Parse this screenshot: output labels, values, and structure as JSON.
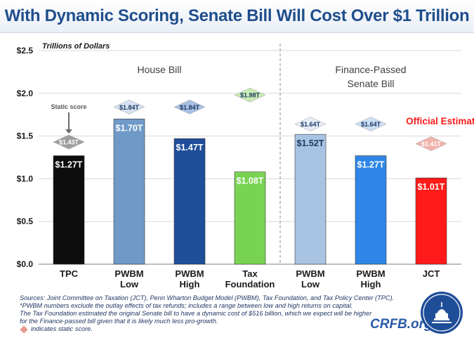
{
  "title": "With Dynamic Scoring, Senate Bill Will Cost Over $1 Trillion",
  "chart_data": {
    "type": "bar",
    "ylabel": "Trillions of Dollars",
    "ylim": [
      0,
      2.5
    ],
    "yticks": [
      0,
      0.5,
      1.0,
      1.5,
      2.0,
      2.5
    ],
    "ytick_labels": [
      "$0.0",
      "$0.5",
      "$1.0",
      "$1.5",
      "$2.0",
      "$2.5"
    ],
    "grid": true,
    "groups": [
      {
        "label_lines": [
          "House Bill"
        ],
        "categories": [
          0,
          1,
          2,
          3
        ]
      },
      {
        "label_lines": [
          "Finance-Passed",
          "Senate Bill"
        ],
        "categories": [
          4,
          5,
          6
        ]
      }
    ],
    "categories": [
      [
        "TPC"
      ],
      [
        "PWBM",
        "Low"
      ],
      [
        "PWBM",
        "High"
      ],
      [
        "Tax",
        "Foundation"
      ],
      [
        "PWBM",
        "Low"
      ],
      [
        "PWBM",
        "High"
      ],
      [
        "JCT"
      ]
    ],
    "values": [
      1.27,
      1.7,
      1.47,
      1.08,
      1.52,
      1.27,
      1.01
    ],
    "value_labels": [
      "$1.27T",
      "$1.70T",
      "$1.47T",
      "$1.08T",
      "$1.52T",
      "$1.27T",
      "$1.01T"
    ],
    "bar_colors": [
      "#0d0d0d",
      "#6f9ac7",
      "#1f4e99",
      "#79d352",
      "#a9c4e2",
      "#2f86e6",
      "#ff1a1a"
    ],
    "value_label_colors": [
      "#ffffff",
      "#ffffff",
      "#ffffff",
      "#ffffff",
      "#1f3864",
      "#ffffff",
      "#ffffff"
    ],
    "static_scores": [
      1.43,
      1.84,
      1.84,
      1.98,
      1.64,
      1.64,
      1.41
    ],
    "static_labels": [
      "$1.43T",
      "$1.84T",
      "$1.84T",
      "$1.98T",
      "$1.64T",
      "$1.64T",
      "$1.41T"
    ],
    "diamond_colors": [
      "#9e9e9e",
      "#d4e2f1",
      "#a9bfe3",
      "#c9ebb5",
      "#e6edf7",
      "#cddff6",
      "#f2b1aa"
    ],
    "diamond_text_colors": [
      "#ffffff",
      "#1f3864",
      "#1f3864",
      "#1f3864",
      "#1f3864",
      "#1f3864",
      "#ffffff"
    ],
    "annotations": {
      "static_score": "Static score",
      "official_estimate": "Official Estimate"
    }
  },
  "footer": {
    "lines": [
      "Sources: Joint Committee on Taxation (JCT), Penn Wharton Budget Model (PWBM), Tax Foundation, and Tax Policy Center (TPC).",
      "*PWBM numbers exclude the outlay effects of tax refunds; includes a range between low and high returns on capital.",
      "The Tax Foundation estimated the original Senate bill to have a dynamic cost of $516 billion, which we expect will be higher",
      "for the Finance-passed bill given that it is likely much less pro-growth."
    ],
    "legend_text": "indicates static score.",
    "legend_color": "#e8998f"
  },
  "brand": "CRFB.org"
}
